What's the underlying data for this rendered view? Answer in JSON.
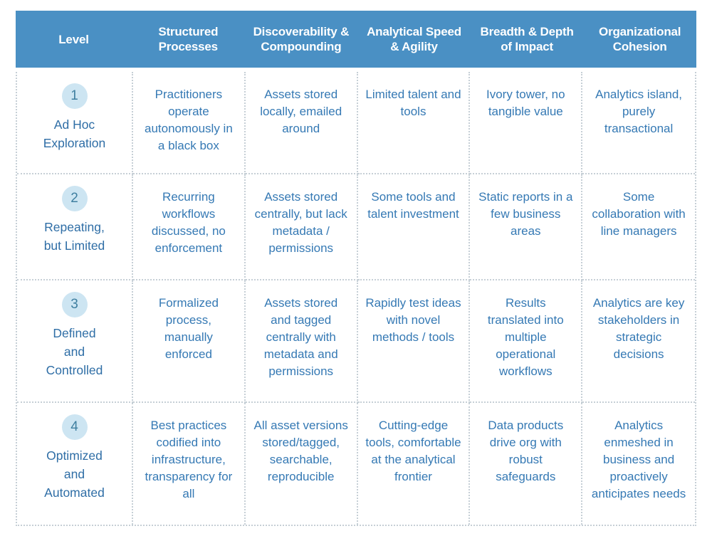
{
  "colors": {
    "header_bg": "#4a90c4",
    "header_text": "#ffffff",
    "cell_text": "#3579b4",
    "level_text": "#2f6ea6",
    "circle_bg": "#cde5f2",
    "circle_text": "#3f7fa0",
    "dots": "#c6cfd6",
    "page_bg": "#ffffff"
  },
  "header": {
    "columns": [
      "Level",
      "Structured Processes",
      "Discoverability & Compounding",
      "Analytical Speed & Agility",
      "Breadth & Depth of Impact",
      "Organizational Cohesion"
    ]
  },
  "rows": [
    {
      "level_number": "1",
      "level_label": "Ad Hoc\nExploration",
      "cells": [
        "Practitioners operate autonomously in a black box",
        "Assets stored locally, emailed around",
        "Limited talent and tools",
        "Ivory tower, no tangible value",
        "Analytics island, purely transactional"
      ]
    },
    {
      "level_number": "2",
      "level_label": "Repeating,\nbut Limited",
      "cells": [
        "Recurring workflows discussed, no enforcement",
        "Assets stored centrally, but lack metadata / permissions",
        "Some tools and talent investment",
        "Static reports in a few business areas",
        "Some collaboration with line managers"
      ]
    },
    {
      "level_number": "3",
      "level_label": "Defined\nand\nControlled",
      "cells": [
        "Formalized process, manually enforced",
        "Assets stored and tagged centrally with metadata and permissions",
        "Rapidly test ideas with novel methods / tools",
        "Results translated into multiple operational workflows",
        "Analytics are key stakeholders in strategic decisions"
      ]
    },
    {
      "level_number": "4",
      "level_label": "Optimized\nand\nAutomated",
      "cells": [
        "Best practices codified into infrastructure, transparency for all",
        "All asset versions stored/tagged, searchable, reproducible",
        "Cutting-edge tools, comfortable at the analytical frontier",
        "Data products drive org with robust safeguards",
        "Analytics enmeshed in business and proactively anticipates needs"
      ]
    }
  ]
}
